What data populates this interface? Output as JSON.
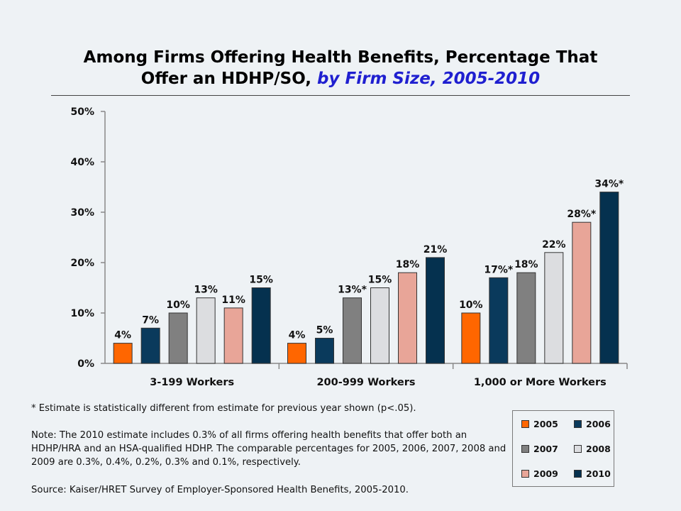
{
  "title": {
    "line1": "Among Firms Offering Health Benefits, Percentage That",
    "line2_prefix": "Offer an HDHP/SO, ",
    "line2_highlight": "by Firm Size, 2005-2010"
  },
  "chart_data": {
    "type": "bar",
    "title": "Among Firms Offering Health Benefits, Percentage That Offer an HDHP/SO, by Firm Size, 2005-2010",
    "categories": [
      "3-199 Workers",
      "200-999 Workers",
      "1,000 or More Workers"
    ],
    "ylim": [
      0,
      50
    ],
    "yticks": [
      0,
      10,
      20,
      30,
      40,
      50
    ],
    "ytick_labels": [
      "0%",
      "10%",
      "20%",
      "30%",
      "40%",
      "50%"
    ],
    "grid": false,
    "legend_position": "bottom-right",
    "series": [
      {
        "name": "2005",
        "color": "#ff6600",
        "values": [
          4,
          4,
          10
        ],
        "labels": [
          "4%",
          "4%",
          "10%"
        ]
      },
      {
        "name": "2006",
        "color": "#0a3a5c",
        "values": [
          7,
          5,
          17
        ],
        "labels": [
          "7%",
          "5%",
          "17%*"
        ]
      },
      {
        "name": "2007",
        "color": "#808080",
        "values": [
          10,
          13,
          18
        ],
        "labels": [
          "10%",
          "13%*",
          "18%"
        ]
      },
      {
        "name": "2008",
        "color": "#dcdde0",
        "values": [
          13,
          15,
          22
        ],
        "labels": [
          "13%",
          "15%",
          "22%"
        ]
      },
      {
        "name": "2009",
        "color": "#e8a598",
        "values": [
          11,
          18,
          28
        ],
        "labels": [
          "11%",
          "18%",
          "28%*"
        ]
      },
      {
        "name": "2010",
        "color": "#05314f",
        "values": [
          15,
          21,
          34
        ],
        "labels": [
          "15%",
          "21%",
          "34%*"
        ]
      }
    ]
  },
  "footnotes": {
    "star": "* Estimate is statistically different from estimate for previous year shown (p<.05).",
    "note": "Note: The 2010 estimate includes 0.3% of all firms offering health benefits that offer both an HDHP/HRA and an HSA-qualified HDHP. The comparable percentages for 2005, 2006, 2007, 2008 and 2009 are 0.3%, 0.4%, 0.2%, 0.3% and 0.1%, respectively.",
    "source": "Source:   Kaiser/HRET Survey of Employer-Sponsored Health Benefits, 2005-2010."
  }
}
